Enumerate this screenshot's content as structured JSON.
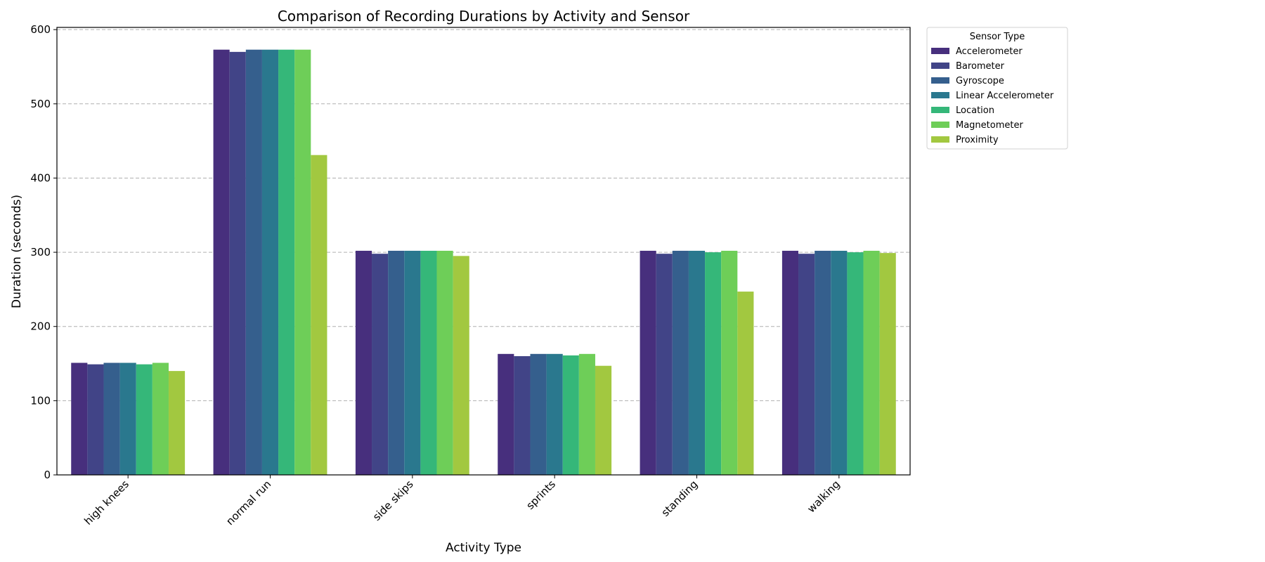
{
  "chart_data": {
    "type": "bar",
    "title": "Comparison of Recording Durations by Activity and Sensor",
    "xlabel": "Activity Type",
    "ylabel": "Duration (seconds)",
    "ylim": [
      0,
      603
    ],
    "yticks": [
      0,
      100,
      200,
      300,
      400,
      500,
      600
    ],
    "grid": "y-dashed",
    "legend": {
      "title": "Sensor Type",
      "placement": "outside-top-right"
    },
    "categories": [
      "high knees",
      "normal run",
      "side skips",
      "sprints",
      "standing",
      "walking"
    ],
    "series": [
      {
        "name": "Accelerometer",
        "color": "#472f7d",
        "values": [
          151,
          573,
          302,
          163,
          302,
          302
        ]
      },
      {
        "name": "Barometer",
        "color": "#414487",
        "values": [
          149,
          570,
          298,
          160,
          298,
          298
        ]
      },
      {
        "name": "Gyroscope",
        "color": "#355f8d",
        "values": [
          151,
          573,
          302,
          163,
          302,
          302
        ]
      },
      {
        "name": "Linear Accelerometer",
        "color": "#2a788e",
        "values": [
          151,
          573,
          302,
          163,
          302,
          302
        ]
      },
      {
        "name": "Location",
        "color": "#35b779",
        "values": [
          149,
          573,
          302,
          161,
          300,
          300
        ]
      },
      {
        "name": "Magnetometer",
        "color": "#6ece58",
        "values": [
          151,
          573,
          302,
          163,
          302,
          302
        ]
      },
      {
        "name": "Proximity",
        "color": "#a2c840",
        "values": [
          140,
          431,
          295,
          147,
          247,
          299
        ]
      }
    ]
  }
}
